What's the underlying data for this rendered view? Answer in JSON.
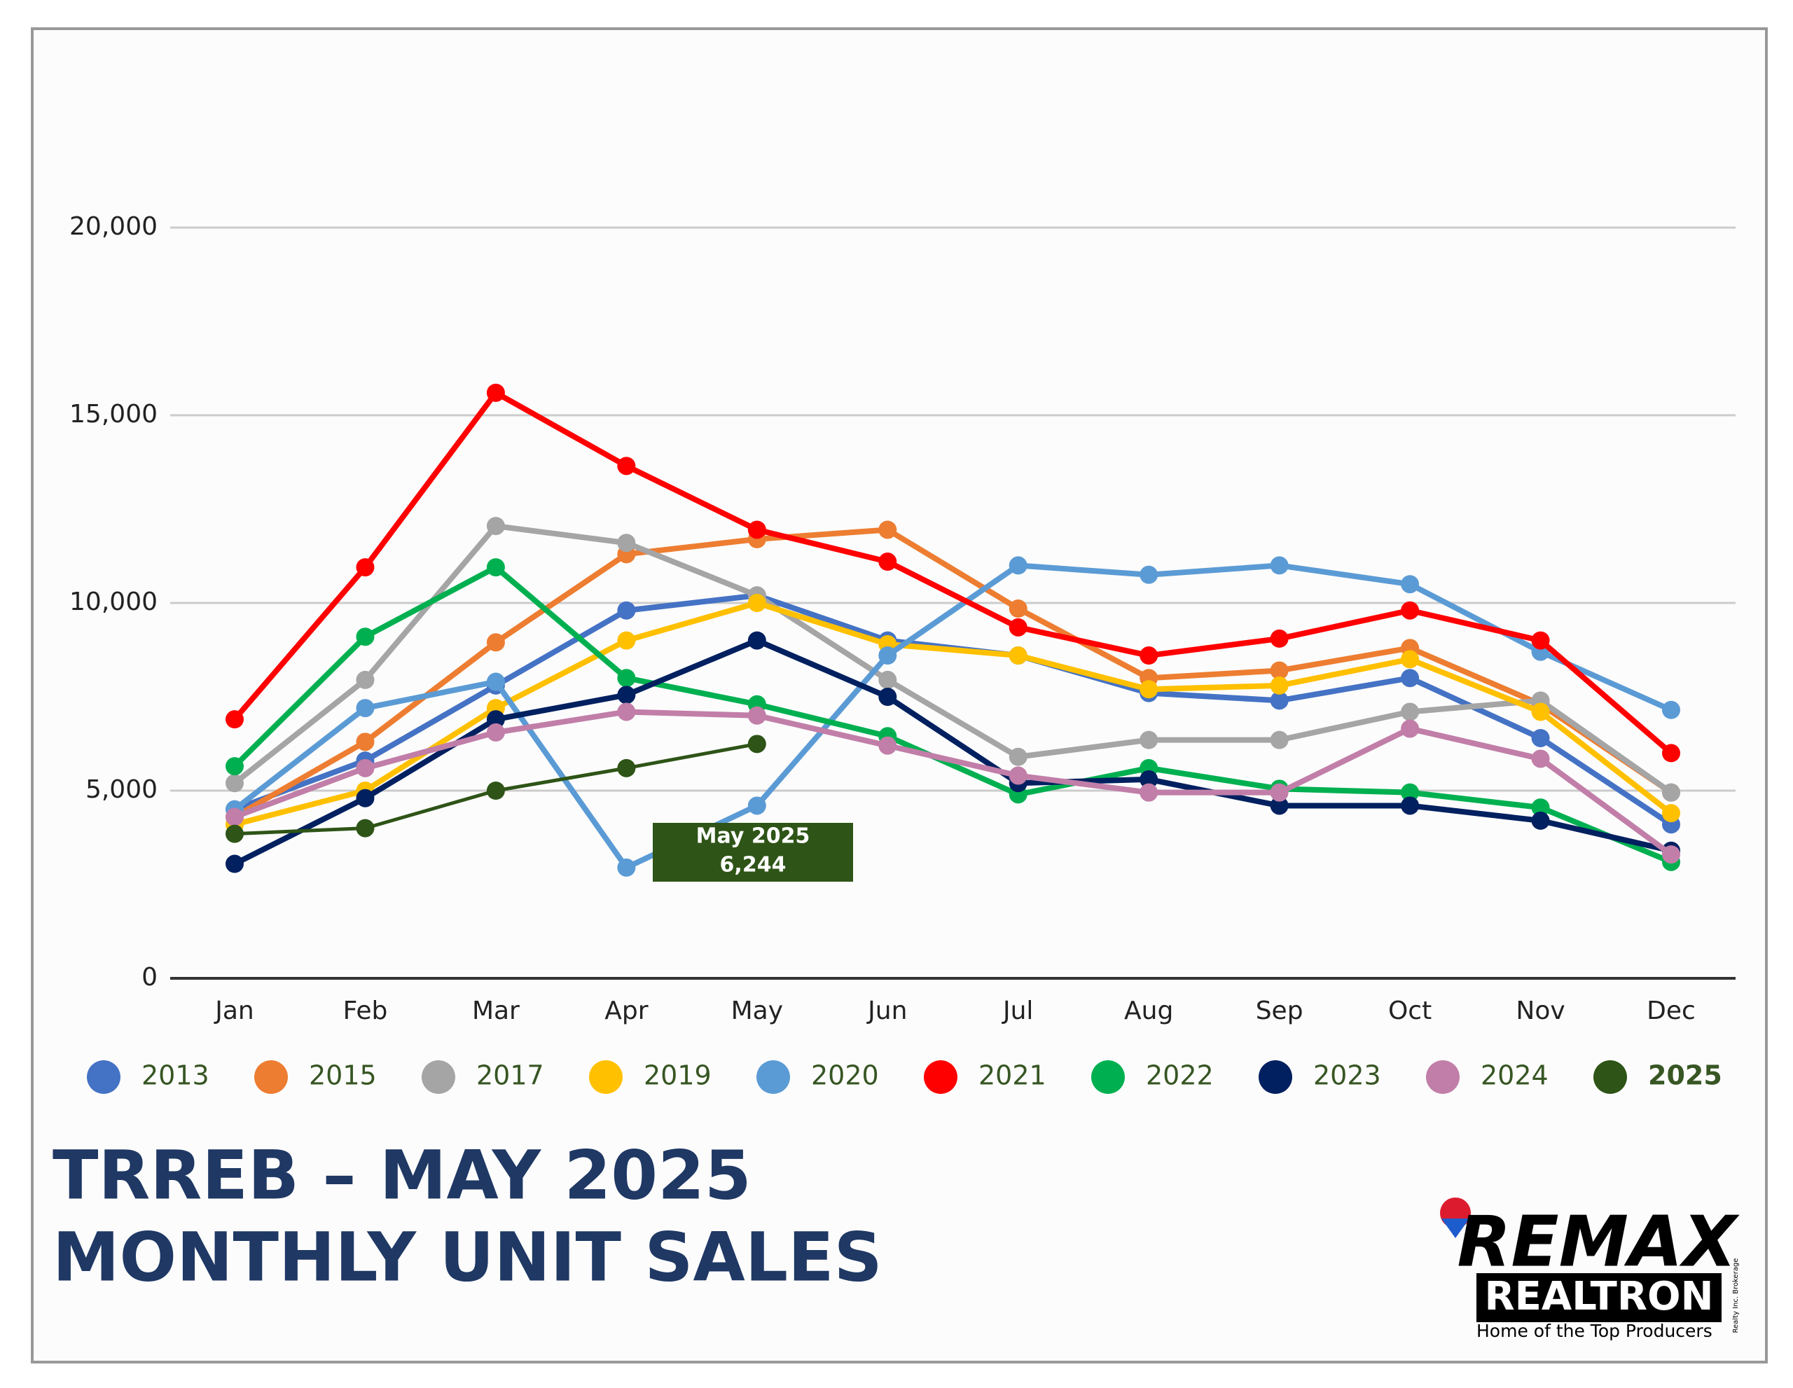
{
  "chart_data": {
    "type": "line",
    "title": "TRREB – MAY 2025",
    "subtitle": "MONTHLY UNIT SALES",
    "categories": [
      "Jan",
      "Feb",
      "Mar",
      "Apr",
      "May",
      "Jun",
      "Jul",
      "Aug",
      "Sep",
      "Oct",
      "Nov",
      "Dec"
    ],
    "ylim": [
      0,
      20000
    ],
    "yticks": [
      0,
      {
        "value": 5000,
        "label": "5,000"
      },
      {
        "value": 10000,
        "label": "10,000"
      },
      {
        "value": 15000,
        "label": "15,000"
      },
      {
        "value": 20000,
        "label": "20,000"
      }
    ],
    "grid": true,
    "legend": "bottom",
    "series": [
      {
        "name": "2013",
        "color": "#4472c4",
        "values": [
          4500,
          5800,
          7800,
          9800,
          10200,
          9000,
          8600,
          7600,
          7400,
          8000,
          6400,
          4100
        ]
      },
      {
        "name": "2015",
        "color": "#ed7d31",
        "values": [
          4300,
          6300,
          8950,
          11300,
          11700,
          11950,
          9850,
          8000,
          8200,
          8800,
          7300,
          4950
        ]
      },
      {
        "name": "2017",
        "color": "#a5a5a5",
        "values": [
          5200,
          7950,
          12050,
          11600,
          10200,
          7950,
          5900,
          6350,
          6350,
          7100,
          7400,
          4950
        ]
      },
      {
        "name": "2019",
        "color": "#ffc000",
        "values": [
          4100,
          5000,
          7200,
          9000,
          10000,
          8900,
          8600,
          7700,
          7800,
          8500,
          7100,
          4400
        ]
      },
      {
        "name": "2020",
        "color": "#5b9bd5",
        "values": [
          4500,
          7200,
          7900,
          2950,
          4600,
          8600,
          11000,
          10750,
          11000,
          10500,
          8700,
          7150
        ]
      },
      {
        "name": "2021",
        "color": "#ff0000",
        "values": [
          6900,
          10950,
          15600,
          13650,
          11950,
          11100,
          9350,
          8600,
          9050,
          9800,
          9000,
          6000
        ]
      },
      {
        "name": "2022",
        "color": "#00b050",
        "values": [
          5650,
          9100,
          10950,
          8000,
          7300,
          6450,
          4900,
          5600,
          5050,
          4950,
          4550,
          3100
        ]
      },
      {
        "name": "2023",
        "color": "#002060",
        "values": [
          3050,
          4800,
          6900,
          7550,
          9000,
          7500,
          5200,
          5300,
          4600,
          4600,
          4200,
          3400
        ]
      },
      {
        "name": "2024",
        "color": "#c17ea8",
        "values": [
          4300,
          5600,
          6550,
          7100,
          7000,
          6200,
          5400,
          4950,
          4950,
          6650,
          5850,
          3300
        ]
      },
      {
        "name": "2025",
        "color": "#2e5417",
        "values": [
          3850,
          4000,
          5000,
          5600,
          6244,
          null,
          null,
          null,
          null,
          null,
          null,
          null
        ]
      }
    ],
    "annotation": {
      "text": "May 2025",
      "value": 6244,
      "value_label": "6,244"
    }
  },
  "logo": {
    "brand": "REMAX",
    "office": "REALTRON",
    "fine_print": "Realty Inc. Brokerage",
    "tagline": "Home of the Top Producers"
  }
}
